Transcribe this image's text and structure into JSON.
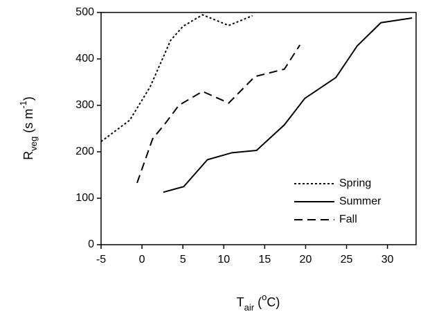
{
  "chart_data": {
    "type": "line",
    "xlabel": [
      "T",
      "air",
      " (",
      "o",
      "C)"
    ],
    "ylabel": [
      "R",
      "veg",
      " (s m",
      "-1",
      ")"
    ],
    "xlim": [
      -5,
      33.5
    ],
    "xticks": [
      -5,
      0,
      5,
      10,
      15,
      20,
      25,
      30
    ],
    "ylim": [
      0,
      500
    ],
    "yticks": [
      0,
      100,
      200,
      300,
      400,
      500
    ],
    "legend": "lower right",
    "series": [
      {
        "name": "Spring",
        "color": "#000000",
        "dash": "dotted",
        "x": [
          -5,
          -1.5,
          1,
          3.5,
          5,
          7.4,
          10.6,
          13.5
        ],
        "values": [
          222,
          268,
          340,
          440,
          470,
          495,
          472,
          493
        ]
      },
      {
        "name": "Summer",
        "color": "#000000",
        "dash": "solid",
        "x": [
          2.6,
          5.1,
          8,
          11,
          14,
          17.4,
          19.9,
          23.7,
          26.3,
          29.2,
          33
        ],
        "values": [
          113,
          125,
          183,
          198,
          203,
          258,
          315,
          360,
          428,
          478,
          488
        ]
      },
      {
        "name": "Fall",
        "color": "#000000",
        "dash": "dashed",
        "x": [
          -0.6,
          1.3,
          2.8,
          4.5,
          7.4,
          10.6,
          13.8,
          17.4,
          19.3
        ],
        "values": [
          133,
          228,
          260,
          300,
          330,
          305,
          362,
          378,
          430
        ]
      }
    ]
  }
}
